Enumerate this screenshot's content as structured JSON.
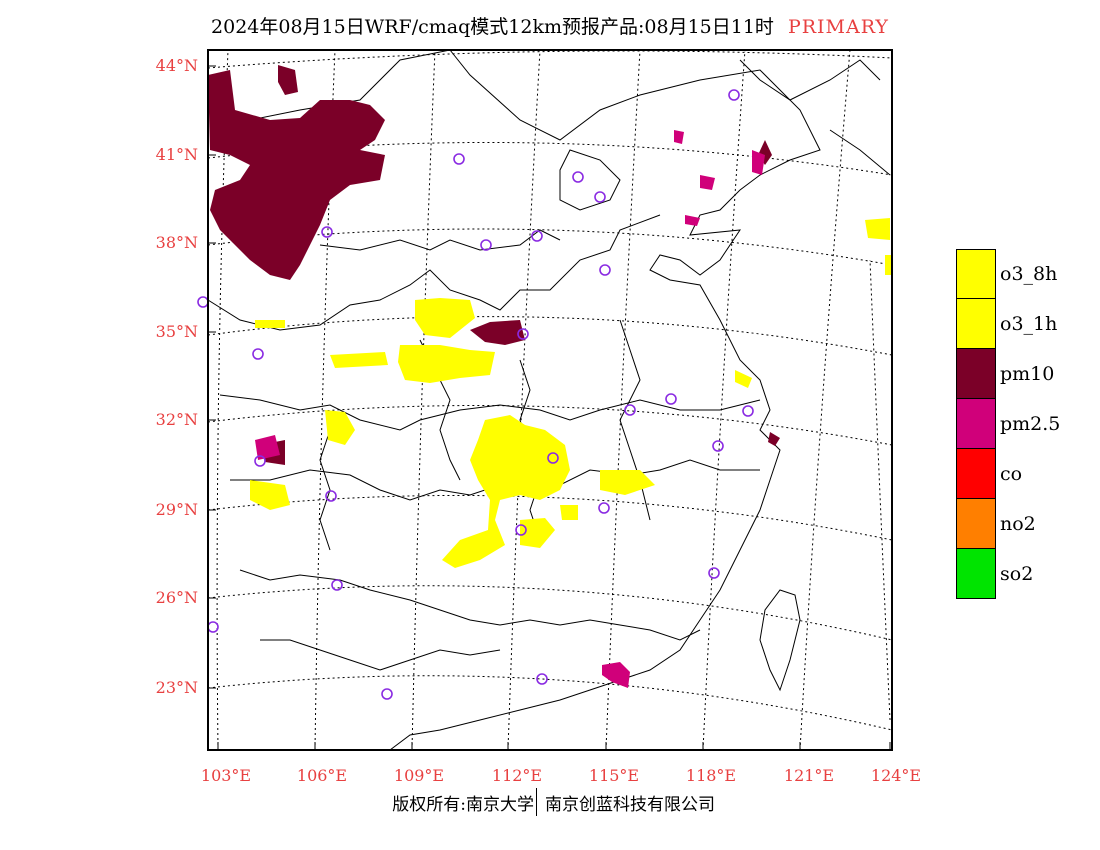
{
  "title": {
    "main": "2024年08月15日WRF/cmaq模式12km预报产品:08月15日11时",
    "tag": "PRIMARY"
  },
  "lat_labels": [
    "44°N",
    "41°N",
    "38°N",
    "35°N",
    "32°N",
    "29°N",
    "26°N",
    "23°N"
  ],
  "lon_labels": [
    "103°E",
    "106°E",
    "109°E",
    "112°E",
    "115°E",
    "118°E",
    "121°E",
    "124°E"
  ],
  "legend": [
    {
      "label": "o3_8h",
      "color": "#ffff00"
    },
    {
      "label": "o3_1h",
      "color": "#ffff00"
    },
    {
      "label": "pm10",
      "color": "#7b0028"
    },
    {
      "label": "pm2.5",
      "color": "#d0007a"
    },
    {
      "label": "co",
      "color": "#ff0000"
    },
    {
      "label": "no2",
      "color": "#ff7f00"
    },
    {
      "label": "so2",
      "color": "#00e400"
    }
  ],
  "footer": {
    "copyright": "版权所有:南京大学",
    "company": "南京创蓝科技有限公司"
  },
  "colors": {
    "station_marker": "#8a2be2",
    "axis_label": "#e84040",
    "o3": "#ffff00",
    "pm10": "#7b0028",
    "pm25": "#d0007a"
  }
}
